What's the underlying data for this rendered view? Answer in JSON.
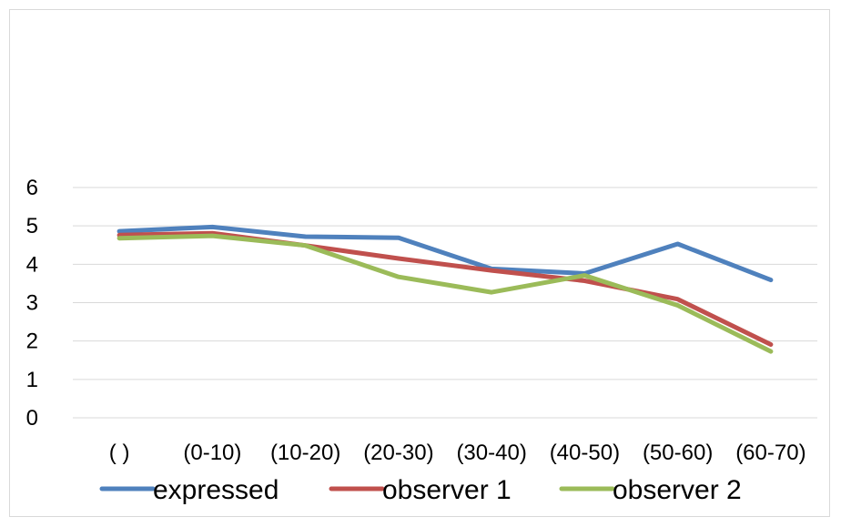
{
  "chart_data": {
    "type": "line",
    "categories": [
      "( )",
      "(0-10)",
      "(10-20)",
      "(20-30)",
      "(30-40)",
      "(40-50)",
      "(50-60)",
      "(60-70)"
    ],
    "series": [
      {
        "name": "expressed",
        "color": "#4f81bd",
        "values": [
          4.86,
          4.97,
          4.72,
          4.69,
          3.88,
          3.76,
          4.53,
          3.59
        ]
      },
      {
        "name": "observer 1",
        "color": "#c0504d",
        "values": [
          4.76,
          4.81,
          4.49,
          4.15,
          3.84,
          3.57,
          3.09,
          1.91
        ]
      },
      {
        "name": "observer 2",
        "color": "#9bbb59",
        "values": [
          4.68,
          4.74,
          4.49,
          3.67,
          3.27,
          3.71,
          2.93,
          1.73
        ]
      }
    ],
    "ylim": [
      0,
      6
    ],
    "yticks": [
      "0",
      "1",
      "2",
      "3",
      "4",
      "5",
      "6"
    ],
    "grid": true,
    "legend_position": "bottom",
    "gridline_color": "#d9d9d9"
  }
}
